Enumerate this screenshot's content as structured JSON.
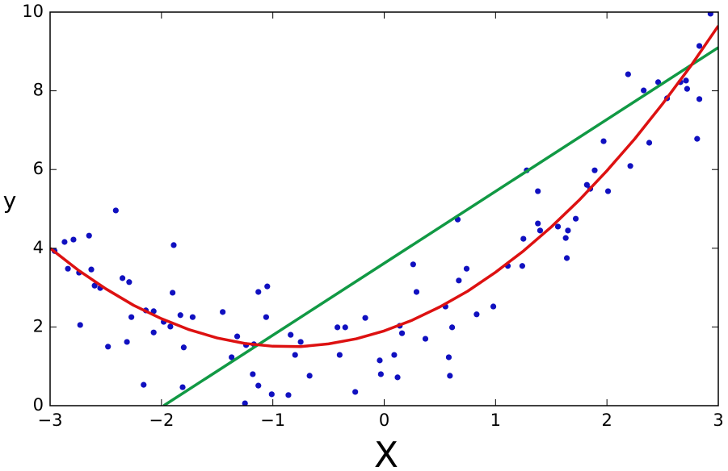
{
  "chart_data": {
    "type": "scatter",
    "xlabel": "X",
    "ylabel": "y",
    "xlim": [
      -3,
      3
    ],
    "ylim": [
      0,
      10
    ],
    "xticks": [
      {
        "value": -3,
        "label": "−3"
      },
      {
        "value": -2,
        "label": "−2"
      },
      {
        "value": -1,
        "label": "−1"
      },
      0,
      1,
      2,
      3
    ],
    "yticks": [
      0,
      2,
      4,
      6,
      8,
      10
    ],
    "grid": false,
    "series": [
      {
        "type": "scatter",
        "color": "#1010c0",
        "x": [
          -2.96,
          -2.87,
          -2.84,
          -2.79,
          -2.74,
          -2.73,
          -2.65,
          -2.63,
          -2.6,
          -2.55,
          -2.48,
          -2.41,
          -2.35,
          -2.29,
          -2.31,
          -2.27,
          -2.16,
          -2.14,
          -2.07,
          -2.07,
          -1.98,
          -1.92,
          -1.89,
          -1.9,
          -1.83,
          -1.8,
          -1.81,
          -1.72,
          -1.45,
          -1.37,
          -1.32,
          -1.25,
          -1.24,
          -1.17,
          -1.18,
          -1.13,
          -1.13,
          -1.05,
          -1.06,
          -1.01,
          -0.86,
          -0.84,
          -0.8,
          -0.75,
          -0.67,
          -0.42,
          -0.4,
          -0.35,
          -0.26,
          -0.17,
          -0.04,
          -0.03,
          0.09,
          0.12,
          0.14,
          0.16,
          0.26,
          0.29,
          0.37,
          0.55,
          0.58,
          0.59,
          0.61,
          0.66,
          0.67,
          0.74,
          0.83,
          0.98,
          1.11,
          1.24,
          1.25,
          1.28,
          1.38,
          1.4,
          1.38,
          1.56,
          1.63,
          1.64,
          1.65,
          1.72,
          1.82,
          1.85,
          1.89,
          1.97,
          2.01,
          2.19,
          2.21,
          2.33,
          2.38,
          2.46,
          2.54,
          2.66,
          2.71,
          2.72,
          2.81,
          2.83,
          2.83,
          2.93
        ],
        "values": [
          3.93,
          4.16,
          3.48,
          4.22,
          3.38,
          2.05,
          4.32,
          3.46,
          3.05,
          2.99,
          1.5,
          4.96,
          3.24,
          3.14,
          1.62,
          2.25,
          0.53,
          2.42,
          1.86,
          2.4,
          2.13,
          2.01,
          4.08,
          2.87,
          2.3,
          1.48,
          0.47,
          2.25,
          2.38,
          1.23,
          1.76,
          0.06,
          1.54,
          1.56,
          0.8,
          0.51,
          2.89,
          3.03,
          2.25,
          0.29,
          0.27,
          1.8,
          1.29,
          1.62,
          0.76,
          1.99,
          1.29,
          1.99,
          0.35,
          2.23,
          1.15,
          0.8,
          1.29,
          0.72,
          2.03,
          1.84,
          3.59,
          2.89,
          1.7,
          2.52,
          1.23,
          0.76,
          1.99,
          4.73,
          3.18,
          3.48,
          2.32,
          2.52,
          3.55,
          3.55,
          4.24,
          5.98,
          4.63,
          4.45,
          5.45,
          4.55,
          4.26,
          3.75,
          4.45,
          4.75,
          5.61,
          5.51,
          5.98,
          6.72,
          5.45,
          8.42,
          6.09,
          8.01,
          6.68,
          8.22,
          7.81,
          8.22,
          8.26,
          8.05,
          6.78,
          7.79,
          9.14,
          9.96
        ]
      },
      {
        "type": "line",
        "color": "#119944",
        "x": [
          -1.98,
          3
        ],
        "values": [
          0,
          9.1
        ]
      },
      {
        "type": "line",
        "color": "#dd1111",
        "x": [
          -3,
          -2.75,
          -2.5,
          -2.25,
          -2,
          -1.75,
          -1.5,
          -1.25,
          -1,
          -0.75,
          -0.5,
          -0.25,
          0,
          0.25,
          0.5,
          0.75,
          1,
          1.25,
          1.5,
          1.75,
          2,
          2.25,
          2.5,
          2.75,
          3
        ],
        "values": [
          4.0,
          3.45,
          2.97,
          2.55,
          2.21,
          1.93,
          1.72,
          1.58,
          1.51,
          1.5,
          1.57,
          1.7,
          1.9,
          2.17,
          2.51,
          2.91,
          3.39,
          3.93,
          4.54,
          5.22,
          5.97,
          6.78,
          7.67,
          8.62,
          9.65
        ]
      }
    ]
  }
}
